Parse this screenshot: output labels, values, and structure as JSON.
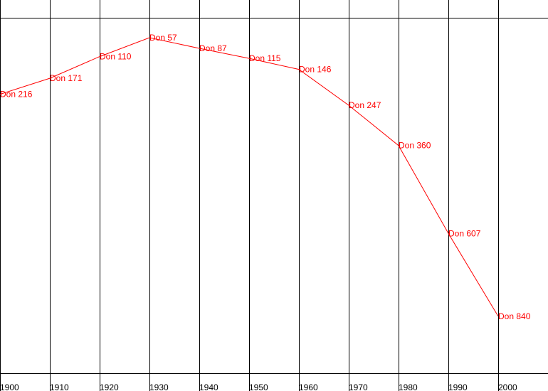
{
  "chart_data": {
    "type": "line",
    "title": "",
    "xlabel": "",
    "ylabel": "",
    "x": [
      1900,
      1910,
      1920,
      1930,
      1940,
      1950,
      1960,
      1970,
      1980,
      1990,
      2000
    ],
    "tick_labels": [
      "1900",
      "1910",
      "1920",
      "1930",
      "1940",
      "1950",
      "1960",
      "1970",
      "1980",
      "1990",
      "2000"
    ],
    "series": [
      {
        "color": "#ff0000",
        "values": [
          216,
          171,
          110,
          57,
          87,
          115,
          146,
          247,
          360,
          607,
          840
        ],
        "labels": [
          "Don 216",
          "Don 171",
          "Don 110",
          "Don 57",
          "Don 87",
          "Don 115",
          "Don 146",
          "Don 247",
          "Don 360",
          "Don 607",
          "Don 840"
        ]
      }
    ],
    "yscale": "rank-inverted",
    "ylim": [
      1,
      1000
    ],
    "grid": "vertical",
    "legend": "none"
  }
}
